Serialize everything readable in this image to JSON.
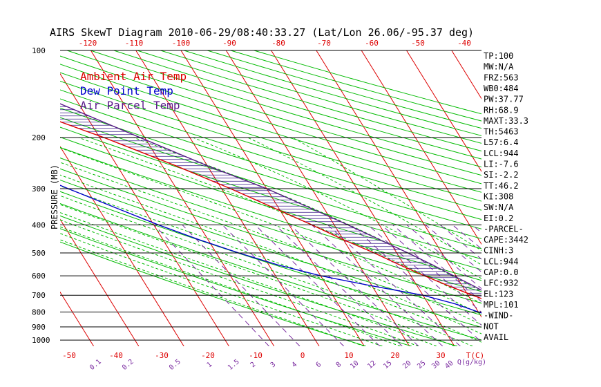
{
  "title": "AIRS SkewT Diagram 2010-06-29/08:40:33.27 (Lat/Lon 26.06/-95.37 deg)",
  "legend": [
    {
      "label": "Ambient Air Temp",
      "color": "#dd0000"
    },
    {
      "label": "Dew Point Temp",
      "color": "#0000cc"
    },
    {
      "label": "Air Parcel Temp",
      "color": "#5a1a8a"
    }
  ],
  "ylabel": "PRESSURE (MB)",
  "top_axis_ticks": [
    "-120",
    "-110",
    "-100",
    "-90",
    "-80",
    "-70",
    "-60",
    "-50",
    "-40"
  ],
  "bottom_temp_ticks": [
    "-50",
    "-40",
    "-30",
    "-20",
    "-10",
    "0",
    "10",
    "20",
    "30"
  ],
  "bottom_temp_unit": "T(C)",
  "mixing_ratio_ticks": [
    "0.1",
    "0.2",
    "0.5",
    "1",
    "1.5",
    "2",
    "3",
    "4",
    "6",
    "8",
    "10",
    "12",
    "15",
    "20",
    "25",
    "30",
    "40"
  ],
  "mixing_ratio_unit": "Q(g/kg)",
  "pressure_ticks": [
    "100",
    "200",
    "300",
    "400",
    "500",
    "600",
    "700",
    "800",
    "900",
    "1000"
  ],
  "indices": [
    "TP:100",
    "MW:N/A",
    "FRZ:563",
    "WB0:484",
    "PW:37.77",
    "RH:68.9",
    "MAXT:33.3",
    "TH:5463",
    "L57:6.4",
    "LCL:944",
    "LI:-7.6",
    "SI:-2.2",
    "TT:46.2",
    "KI:308",
    "SW:N/A",
    "EI:0.2",
    "-PARCEL-",
    "CAPE:3442",
    "CINH:3",
    "LCL:944",
    "CAP:0.0",
    "LFC:932",
    "EL:123",
    "MPL:101",
    "-WIND-",
    "NOT",
    "AVAIL"
  ],
  "colors": {
    "temperature": "#dd0000",
    "dewpoint": "#0000cc",
    "parcel": "#5a1a8a",
    "isotherm": "#dd0000",
    "dry_adiabat": "#00bb00",
    "moist_adiabat": "#00bb00",
    "mixing_ratio_line": "#7a2aa0",
    "hatch": "#3a1a8a",
    "isobar": "#000000"
  },
  "chart_data": {
    "type": "line",
    "y_scale": "log-pressure",
    "ylim": [
      1050,
      100
    ],
    "series": [
      {
        "name": "Ambient Air Temp",
        "points": [
          {
            "p": 1000,
            "t": 31
          },
          {
            "p": 950,
            "t": 27
          },
          {
            "p": 900,
            "t": 24
          },
          {
            "p": 850,
            "t": 21
          },
          {
            "p": 800,
            "t": 18
          },
          {
            "p": 750,
            "t": 15
          },
          {
            "p": 700,
            "t": 11
          },
          {
            "p": 650,
            "t": 7
          },
          {
            "p": 600,
            "t": 3
          },
          {
            "p": 550,
            "t": -1
          },
          {
            "p": 500,
            "t": -5
          },
          {
            "p": 450,
            "t": -10
          },
          {
            "p": 400,
            "t": -15
          },
          {
            "p": 350,
            "t": -21
          },
          {
            "p": 300,
            "t": -28
          },
          {
            "p": 250,
            "t": -37
          },
          {
            "p": 200,
            "t": -49
          },
          {
            "p": 175,
            "t": -57
          },
          {
            "p": 150,
            "t": -67
          },
          {
            "p": 125,
            "t": -72
          },
          {
            "p": 100,
            "t": -72
          }
        ]
      },
      {
        "name": "Dew Point Temp",
        "points": [
          {
            "p": 1000,
            "t": 25
          },
          {
            "p": 950,
            "t": 22
          },
          {
            "p": 900,
            "t": 18
          },
          {
            "p": 850,
            "t": 14
          },
          {
            "p": 800,
            "t": 10
          },
          {
            "p": 750,
            "t": 6
          },
          {
            "p": 700,
            "t": 0
          },
          {
            "p": 650,
            "t": -10
          },
          {
            "p": 600,
            "t": -20
          },
          {
            "p": 550,
            "t": -28
          },
          {
            "p": 500,
            "t": -35
          },
          {
            "p": 450,
            "t": -42
          },
          {
            "p": 400,
            "t": -49
          },
          {
            "p": 350,
            "t": -56
          },
          {
            "p": 300,
            "t": -64
          },
          {
            "p": 250,
            "t": -73
          },
          {
            "p": 200,
            "t": -82
          },
          {
            "p": 150,
            "t": -88
          },
          {
            "p": 100,
            "t": -91
          }
        ]
      },
      {
        "name": "Air Parcel Temp",
        "points": [
          {
            "p": 1000,
            "t": 31
          },
          {
            "p": 944,
            "t": 24.5
          },
          {
            "p": 900,
            "t": 23
          },
          {
            "p": 850,
            "t": 21.3
          },
          {
            "p": 800,
            "t": 19.5
          },
          {
            "p": 750,
            "t": 17.5
          },
          {
            "p": 700,
            "t": 15
          },
          {
            "p": 650,
            "t": 12.5
          },
          {
            "p": 600,
            "t": 9.5
          },
          {
            "p": 550,
            "t": 6.3
          },
          {
            "p": 500,
            "t": 2.5
          },
          {
            "p": 450,
            "t": -2
          },
          {
            "p": 400,
            "t": -7
          },
          {
            "p": 350,
            "t": -13
          },
          {
            "p": 300,
            "t": -20
          },
          {
            "p": 250,
            "t": -30
          },
          {
            "p": 200,
            "t": -41
          },
          {
            "p": 150,
            "t": -55
          },
          {
            "p": 123,
            "t": -64
          },
          {
            "p": 100,
            "t": -75
          }
        ]
      }
    ]
  }
}
